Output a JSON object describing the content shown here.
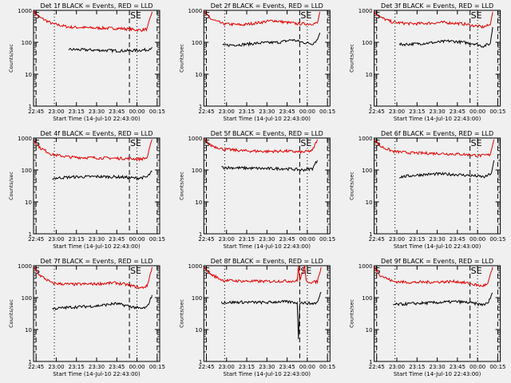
{
  "figure": {
    "background": "#f0f0f0",
    "axis_color": "#000000",
    "events_color": "#000000",
    "lld_color": "#e00000"
  },
  "chart_data": [
    {
      "type": "line",
      "title": "Det 1f BLACK = Events, RED = LLD",
      "ylabel": "Counts/sec",
      "xlabel": "Start Time (14-Jul-10 22:43:00)",
      "xticks": [
        "22:45",
        "23:00",
        "23:15",
        "23:30",
        "23:45",
        "00:00",
        "00:15"
      ],
      "yscale": "log",
      "ylim": [
        1,
        1000
      ],
      "yticks": [
        "1",
        "10",
        "100",
        "1000"
      ],
      "annotations": [
        "S",
        "SE"
      ],
      "series": [
        {
          "name": "Events",
          "color": "#000000",
          "points": [
            [
              0.28,
              60
            ],
            [
              0.4,
              58
            ],
            [
              0.55,
              56
            ],
            [
              0.7,
              54
            ],
            [
              0.82,
              56
            ],
            [
              0.9,
              58
            ],
            [
              0.94,
              70
            ]
          ]
        },
        {
          "name": "LLD",
          "color": "#e00000",
          "points": [
            [
              0.0,
              900
            ],
            [
              0.05,
              600
            ],
            [
              0.15,
              380
            ],
            [
              0.28,
              300
            ],
            [
              0.5,
              280
            ],
            [
              0.7,
              270
            ],
            [
              0.85,
              240
            ],
            [
              0.9,
              260
            ],
            [
              0.94,
              900
            ]
          ]
        }
      ]
    },
    {
      "type": "line",
      "title": "Det 2f BLACK = Events, RED = LLD",
      "ylabel": "Counts/sec",
      "xlabel": "Start Time (14-Jul-10 22:43:00)",
      "xticks": [
        "22:45",
        "23:00",
        "23:15",
        "23:30",
        "23:45",
        "00:00",
        "00:15"
      ],
      "yscale": "log",
      "ylim": [
        1,
        1000
      ],
      "yticks": [
        "1",
        "10",
        "100",
        "1000"
      ],
      "annotations": [
        "S",
        "SE"
      ],
      "series": [
        {
          "name": "Events",
          "color": "#000000",
          "points": [
            [
              0.15,
              80
            ],
            [
              0.3,
              85
            ],
            [
              0.45,
              95
            ],
            [
              0.6,
              100
            ],
            [
              0.7,
              120
            ],
            [
              0.78,
              100
            ],
            [
              0.86,
              90
            ],
            [
              0.9,
              120
            ],
            [
              0.92,
              200
            ]
          ]
        },
        {
          "name": "LLD",
          "color": "#e00000",
          "points": [
            [
              0.0,
              900
            ],
            [
              0.05,
              550
            ],
            [
              0.15,
              380
            ],
            [
              0.3,
              350
            ],
            [
              0.45,
              420
            ],
            [
              0.55,
              480
            ],
            [
              0.65,
              420
            ],
            [
              0.75,
              380
            ],
            [
              0.86,
              380
            ],
            [
              0.9,
              400
            ],
            [
              0.92,
              900
            ]
          ]
        }
      ]
    },
    {
      "type": "line",
      "title": "Det 3f BLACK = Events, RED = LLD",
      "ylabel": "Counts/sec",
      "xlabel": "Start Time (14-Jul-10 22:43:00)",
      "xticks": [
        "22:45",
        "23:00",
        "23:15",
        "23:30",
        "23:45",
        "00:00",
        "00:15"
      ],
      "yscale": "log",
      "ylim": [
        1,
        1000
      ],
      "yticks": [
        "1",
        "10",
        "100",
        "1000"
      ],
      "annotations": [
        "S",
        "SE"
      ],
      "series": [
        {
          "name": "Events",
          "color": "#000000",
          "points": [
            [
              0.2,
              85
            ],
            [
              0.35,
              90
            ],
            [
              0.5,
              100
            ],
            [
              0.6,
              110
            ],
            [
              0.7,
              100
            ],
            [
              0.8,
              90
            ],
            [
              0.86,
              75
            ],
            [
              0.92,
              90
            ],
            [
              0.94,
              300
            ]
          ]
        },
        {
          "name": "LLD",
          "color": "#e00000",
          "points": [
            [
              0.0,
              900
            ],
            [
              0.05,
              600
            ],
            [
              0.15,
              420
            ],
            [
              0.3,
              380
            ],
            [
              0.45,
              400
            ],
            [
              0.55,
              420
            ],
            [
              0.7,
              380
            ],
            [
              0.86,
              300
            ],
            [
              0.92,
              350
            ],
            [
              0.94,
              900
            ]
          ]
        }
      ]
    },
    {
      "type": "line",
      "title": "Det 4f BLACK = Events, RED = LLD",
      "ylabel": "Counts/sec",
      "xlabel": "Start Time (14-Jul-10 22:43:00)",
      "xticks": [
        "22:45",
        "23:00",
        "23:15",
        "23:30",
        "23:45",
        "00:00",
        "00:15"
      ],
      "yscale": "log",
      "ylim": [
        1,
        1000
      ],
      "yticks": [
        "1",
        "10",
        "100",
        "1000"
      ],
      "annotations": [
        "S",
        "SE"
      ],
      "series": [
        {
          "name": "Events",
          "color": "#000000",
          "points": [
            [
              0.15,
              55
            ],
            [
              0.3,
              60
            ],
            [
              0.5,
              62
            ],
            [
              0.7,
              60
            ],
            [
              0.82,
              55
            ],
            [
              0.9,
              60
            ],
            [
              0.94,
              90
            ]
          ]
        },
        {
          "name": "LLD",
          "color": "#e00000",
          "points": [
            [
              0.0,
              900
            ],
            [
              0.05,
              500
            ],
            [
              0.15,
              300
            ],
            [
              0.3,
              250
            ],
            [
              0.5,
              240
            ],
            [
              0.7,
              230
            ],
            [
              0.85,
              220
            ],
            [
              0.9,
              240
            ],
            [
              0.94,
              900
            ]
          ]
        }
      ]
    },
    {
      "type": "line",
      "title": "Det 5f BLACK = Events, RED = LLD",
      "ylabel": "Counts/sec",
      "xlabel": "Start Time (14-Jul-10 22:43:00)",
      "xticks": [
        "22:45",
        "23:00",
        "23:15",
        "23:30",
        "23:45",
        "00:00",
        "00:15"
      ],
      "yscale": "log",
      "ylim": [
        1,
        1000
      ],
      "yticks": [
        "1",
        "10",
        "100",
        "1000"
      ],
      "annotations": [
        "S",
        "SE"
      ],
      "series": [
        {
          "name": "Events",
          "color": "#000000",
          "points": [
            [
              0.14,
              120
            ],
            [
              0.3,
              115
            ],
            [
              0.5,
              110
            ],
            [
              0.65,
              110
            ],
            [
              0.78,
              100
            ],
            [
              0.86,
              110
            ],
            [
              0.9,
              200
            ]
          ]
        },
        {
          "name": "LLD",
          "color": "#e00000",
          "points": [
            [
              0.0,
              900
            ],
            [
              0.05,
              600
            ],
            [
              0.15,
              450
            ],
            [
              0.3,
              400
            ],
            [
              0.5,
              380
            ],
            [
              0.65,
              390
            ],
            [
              0.78,
              360
            ],
            [
              0.86,
              400
            ],
            [
              0.9,
              900
            ]
          ]
        }
      ]
    },
    {
      "type": "line",
      "title": "Det 6f BLACK = Events, RED = LLD",
      "ylabel": "Counts/sec",
      "xlabel": "Start Time (14-Jul-10 22:43:00)",
      "xticks": [
        "22:45",
        "23:00",
        "23:15",
        "23:30",
        "23:45",
        "00:00",
        "00:15"
      ],
      "yscale": "log",
      "ylim": [
        1,
        1000
      ],
      "yticks": [
        "1",
        "10",
        "100",
        "1000"
      ],
      "annotations": [
        "S",
        "SE"
      ],
      "series": [
        {
          "name": "Events",
          "color": "#000000",
          "points": [
            [
              0.2,
              60
            ],
            [
              0.35,
              70
            ],
            [
              0.5,
              75
            ],
            [
              0.65,
              72
            ],
            [
              0.8,
              65
            ],
            [
              0.88,
              60
            ],
            [
              0.93,
              80
            ],
            [
              0.95,
              200
            ]
          ]
        },
        {
          "name": "LLD",
          "color": "#e00000",
          "points": [
            [
              0.0,
              900
            ],
            [
              0.05,
              550
            ],
            [
              0.15,
              380
            ],
            [
              0.3,
              340
            ],
            [
              0.5,
              330
            ],
            [
              0.7,
              310
            ],
            [
              0.85,
              280
            ],
            [
              0.92,
              300
            ],
            [
              0.95,
              900
            ]
          ]
        }
      ]
    },
    {
      "type": "line",
      "title": "Det 7f BLACK = Events, RED = LLD",
      "ylabel": "Counts/sec",
      "xlabel": "Start Time (14-Jul-10 22:43:00)",
      "xticks": [
        "22:45",
        "23:00",
        "23:15",
        "23:30",
        "23:45",
        "00:00",
        "00:15"
      ],
      "yscale": "log",
      "ylim": [
        1,
        1000
      ],
      "yticks": [
        "1",
        "10",
        "100",
        "1000"
      ],
      "annotations": [
        "S",
        "SE"
      ],
      "series": [
        {
          "name": "Events",
          "color": "#000000",
          "points": [
            [
              0.15,
              45
            ],
            [
              0.3,
              50
            ],
            [
              0.5,
              55
            ],
            [
              0.65,
              65
            ],
            [
              0.75,
              55
            ],
            [
              0.85,
              45
            ],
            [
              0.9,
              50
            ],
            [
              0.94,
              120
            ]
          ]
        },
        {
          "name": "LLD",
          "color": "#e00000",
          "points": [
            [
              0.0,
              900
            ],
            [
              0.05,
              500
            ],
            [
              0.15,
              280
            ],
            [
              0.3,
              260
            ],
            [
              0.5,
              270
            ],
            [
              0.65,
              290
            ],
            [
              0.75,
              250
            ],
            [
              0.85,
              200
            ],
            [
              0.9,
              230
            ],
            [
              0.94,
              900
            ]
          ]
        }
      ]
    },
    {
      "type": "line",
      "title": "Det 8f BLACK = Events, RED = LLD",
      "ylabel": "Counts/sec",
      "xlabel": "Start Time (14-Jul-10 22:43:00)",
      "xticks": [
        "22:45",
        "23:00",
        "23:15",
        "23:30",
        "23:45",
        "00:00",
        "00:15"
      ],
      "yscale": "log",
      "ylim": [
        1,
        1000
      ],
      "yticks": [
        "1",
        "10",
        "100",
        "1000"
      ],
      "annotations": [
        "S",
        "SE"
      ],
      "series": [
        {
          "name": "Events",
          "color": "#000000",
          "points": [
            [
              0.14,
              70
            ],
            [
              0.3,
              72
            ],
            [
              0.5,
              70
            ],
            [
              0.6,
              75
            ],
            [
              0.7,
              72
            ],
            [
              0.74,
              70
            ],
            [
              0.75,
              5
            ],
            [
              0.76,
              70
            ],
            [
              0.86,
              65
            ],
            [
              0.9,
              70
            ],
            [
              0.93,
              150
            ]
          ]
        },
        {
          "name": "LLD",
          "color": "#e00000",
          "points": [
            [
              0.0,
              900
            ],
            [
              0.05,
              550
            ],
            [
              0.15,
              350
            ],
            [
              0.3,
              330
            ],
            [
              0.5,
              320
            ],
            [
              0.6,
              330
            ],
            [
              0.74,
              330
            ],
            [
              0.75,
              1000
            ],
            [
              0.76,
              330
            ],
            [
              0.8,
              1000
            ],
            [
              0.81,
              330
            ],
            [
              0.86,
              300
            ],
            [
              0.9,
              320
            ],
            [
              0.93,
              900
            ]
          ]
        }
      ]
    },
    {
      "type": "line",
      "title": "Det 9f BLACK = Events, RED = LLD",
      "ylabel": "Counts/sec",
      "xlabel": "Start Time (14-Jul-10 22:43:00)",
      "xticks": [
        "22:45",
        "23:00",
        "23:15",
        "23:30",
        "23:45",
        "00:00",
        "00:15"
      ],
      "yscale": "log",
      "ylim": [
        1,
        1000
      ],
      "yticks": [
        "1",
        "10",
        "100",
        "1000"
      ],
      "annotations": [
        "S",
        "SE"
      ],
      "series": [
        {
          "name": "Events",
          "color": "#000000",
          "points": [
            [
              0.15,
              60
            ],
            [
              0.3,
              65
            ],
            [
              0.5,
              70
            ],
            [
              0.65,
              75
            ],
            [
              0.75,
              70
            ],
            [
              0.85,
              60
            ],
            [
              0.9,
              65
            ],
            [
              0.94,
              140
            ]
          ]
        },
        {
          "name": "LLD",
          "color": "#e00000",
          "points": [
            [
              0.0,
              900
            ],
            [
              0.05,
              500
            ],
            [
              0.15,
              320
            ],
            [
              0.3,
              300
            ],
            [
              0.5,
              310
            ],
            [
              0.65,
              320
            ],
            [
              0.75,
              280
            ],
            [
              0.85,
              230
            ],
            [
              0.9,
              260
            ],
            [
              0.94,
              900
            ]
          ]
        }
      ]
    }
  ]
}
